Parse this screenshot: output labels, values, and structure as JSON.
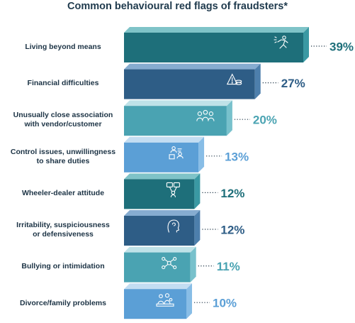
{
  "chart_data": {
    "type": "bar",
    "title": "Common behavioural red flags of fraudsters*",
    "categories": [
      "Living beyond means",
      "Financial difficulties",
      "Unusually close association with vendor/customer",
      "Control issues, unwillingness to share duties",
      "Wheeler-dealer attitude",
      "Irritability, suspiciousness or defensiveness",
      "Bullying or intimidation",
      "Divorce/family problems"
    ],
    "values": [
      39,
      27,
      20,
      13,
      12,
      12,
      11,
      10
    ],
    "value_labels": [
      "39%",
      "27%",
      "20%",
      "13%",
      "12%",
      "12%",
      "11%",
      "10%"
    ],
    "label_lines": [
      [
        "Living beyond means"
      ],
      [
        "Financial difficulties"
      ],
      [
        "Unusually close association",
        "with vendor/customer"
      ],
      [
        "Control issues, unwillingness",
        "to share duties"
      ],
      [
        "Wheeler-dealer attitude"
      ],
      [
        "Irritability, suspiciousness",
        "or defensiveness"
      ],
      [
        "Bullying or intimidation"
      ],
      [
        "Divorce/family problems"
      ]
    ],
    "icons": [
      "running-person-icon",
      "money-alert-icon",
      "people-group-icon",
      "people-hierarchy-icon",
      "speech-bubbles-icon",
      "person-head-icon",
      "network-nodes-icon",
      "family-icon"
    ],
    "bar_colors": [
      {
        "front": "#1e6f7a",
        "top": "#7fc3c8",
        "end": "#3a99a3"
      },
      {
        "front": "#2e5d86",
        "top": "#86acd0",
        "end": "#4d7fac"
      },
      {
        "front": "#4aa3b2",
        "top": "#bfe2e8",
        "end": "#78c1cc"
      },
      {
        "front": "#5b9fd6",
        "top": "#c3ddf2",
        "end": "#88bde6"
      },
      {
        "front": "#1e6f7a",
        "top": "#7fc3c8",
        "end": "#3a99a3"
      },
      {
        "front": "#2e5d86",
        "top": "#86acd0",
        "end": "#4d7fac"
      },
      {
        "front": "#4aa3b2",
        "top": "#bfe2e8",
        "end": "#78c1cc"
      },
      {
        "front": "#5b9fd6",
        "top": "#c3ddf2",
        "end": "#88bde6"
      }
    ],
    "value_label_colors": [
      "#1e6f7a",
      "#2e5d86",
      "#4aa3b2",
      "#5b9fd6",
      "#1e6f7a",
      "#2e5d86",
      "#4aa3b2",
      "#5b9fd6"
    ],
    "xlim": [
      0,
      39
    ],
    "grid": false,
    "legend": "none"
  }
}
